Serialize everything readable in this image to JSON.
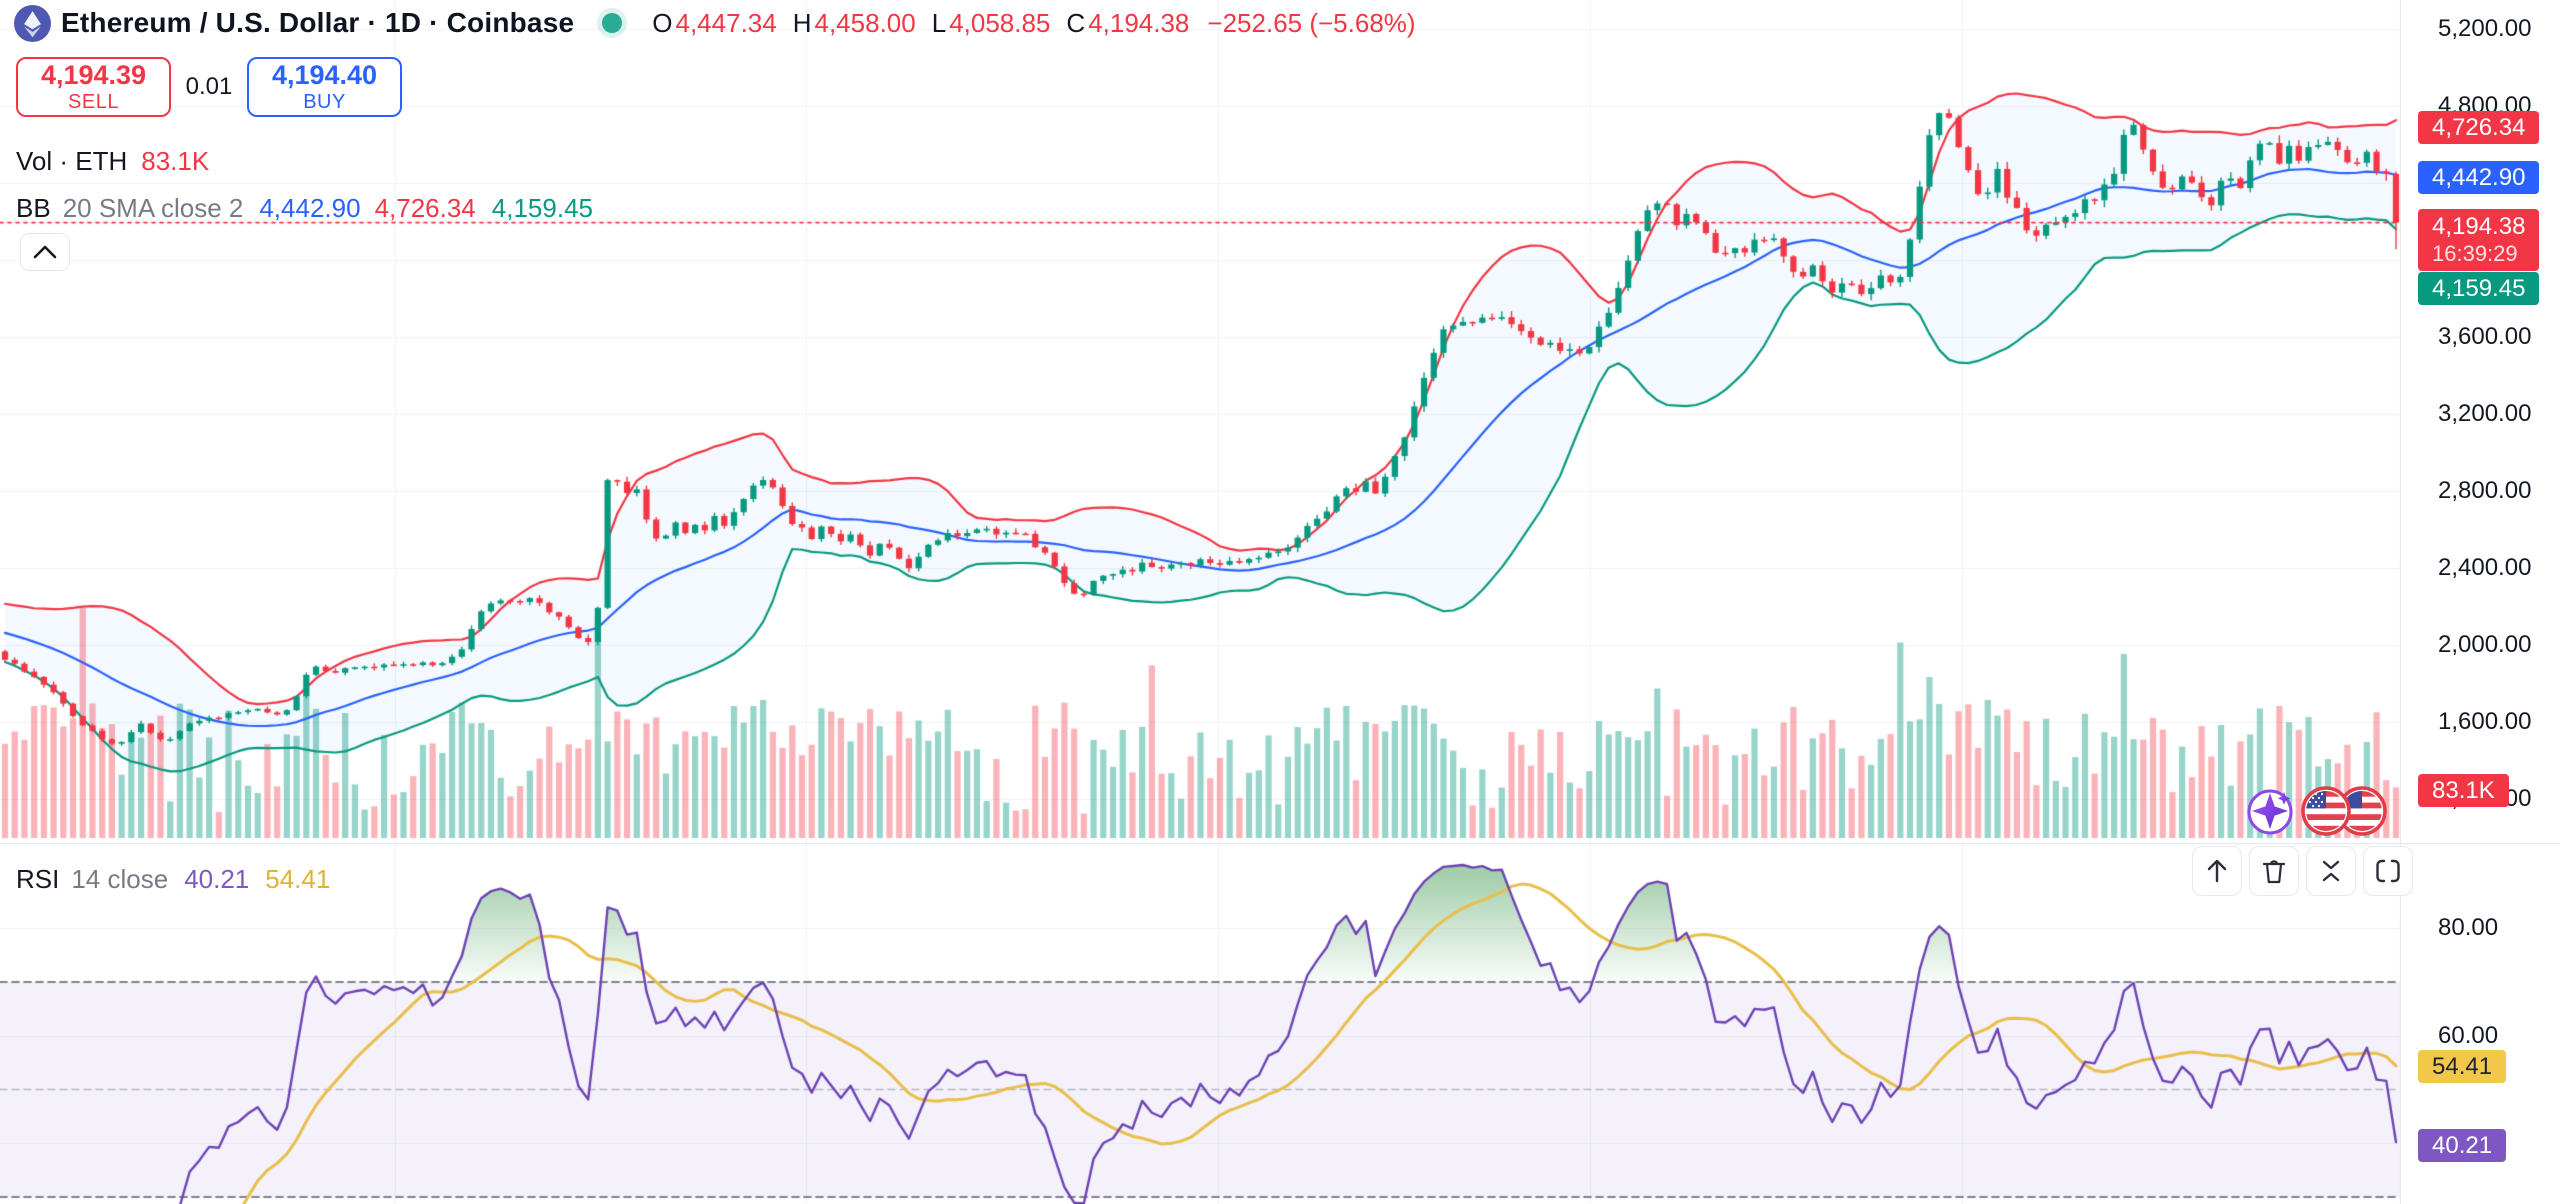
{
  "header": {
    "title": "Ethereum / U.S. Dollar · 1D · Coinbase",
    "ohlc": {
      "o_label": "O",
      "o": "4,447.34",
      "h_label": "H",
      "h": "4,458.00",
      "l_label": "L",
      "l": "4,058.85",
      "c_label": "C",
      "c": "4,194.38",
      "change": "−252.65 (−5.68%)"
    },
    "sell": {
      "price": "4,194.39",
      "label": "SELL"
    },
    "buy": {
      "price": "4,194.40",
      "label": "BUY"
    },
    "spread": "0.01",
    "volume_row": {
      "label": "Vol · ETH",
      "value": "83.1K"
    },
    "bb_row": {
      "label": "BB",
      "params": "20 SMA close 2",
      "basis": "4,442.90",
      "upper": "4,726.34",
      "lower": "4,159.45"
    }
  },
  "rsi_row": {
    "label": "RSI",
    "params": "14 close",
    "value": "40.21",
    "ma": "54.41"
  },
  "badges": {
    "countdown": "16:39:29"
  },
  "icons": [
    "eth-logo-icon",
    "market-status-dot",
    "chevron-up-icon",
    "arrow-up-icon",
    "trash-icon",
    "collapse-pane-icon",
    "maximize-pane-icon",
    "us-flag-event-icon",
    "ai-sparkle-icon"
  ],
  "colors": {
    "up": "#089981",
    "down": "#f23645",
    "bb_basis": "#2962ff",
    "rsi_line": "#6d43b5",
    "rsi_ma": "#e9bf4a",
    "accent_buy": "#2962ff",
    "accent_sell": "#f23645"
  },
  "chart_data": {
    "type": "candlestick",
    "title": "Ethereum / U.S. Dollar, 1D, Coinbase",
    "n_candles": 247,
    "last_candle": {
      "open": 4447.34,
      "high": 4458.0,
      "low": 4058.85,
      "close": 4194.38
    },
    "levels": {
      "close_line": 4194.38,
      "rsi_overbought": 70,
      "rsi_mid": 50,
      "rsi_oversold": 30
    },
    "price_ticks": [
      {
        "label": "5,200.00",
        "value": 5200
      },
      {
        "label": "4,800.00",
        "value": 4800
      },
      {
        "label": "3,600.00",
        "value": 3600
      },
      {
        "label": "3,200.00",
        "value": 3200
      },
      {
        "label": "2,800.00",
        "value": 2800
      },
      {
        "label": "2,400.00",
        "value": 2400
      },
      {
        "label": "2,000.00",
        "value": 2000
      },
      {
        "label": "1,600.00",
        "value": 1600
      },
      {
        "label": "1,200.00",
        "value": 1200
      }
    ],
    "grid_price_values": [
      5200,
      4800,
      4400,
      4000,
      3600,
      3200,
      2800,
      2400,
      2000,
      1600,
      1200
    ],
    "rsi_ticks": [
      {
        "label": "80.00",
        "value": 80
      },
      {
        "label": "60.00",
        "value": 60
      }
    ],
    "rsi_grid_values": [
      80,
      60,
      40
    ],
    "indicators": {
      "bb": {
        "length": 20,
        "mult": 2,
        "basis_val": 4442.9,
        "upper_val": 4726.34,
        "lower_val": 4159.45
      },
      "rsi": {
        "length": 14,
        "value_val": 40.21,
        "ma_val": 54.41
      },
      "volume": {
        "value": "83.1K"
      }
    },
    "price_anchors": [
      [
        -300,
        2350
      ],
      [
        0,
        1950
      ],
      [
        15,
        1900
      ],
      [
        35,
        1830
      ],
      [
        50,
        1770
      ],
      [
        62,
        1700
      ],
      [
        75,
        1620
      ],
      [
        90,
        1560
      ],
      [
        105,
        1510
      ],
      [
        116,
        1475
      ],
      [
        126,
        1530
      ],
      [
        140,
        1585
      ],
      [
        154,
        1540
      ],
      [
        167,
        1498
      ],
      [
        180,
        1555
      ],
      [
        195,
        1600
      ],
      [
        215,
        1625
      ],
      [
        235,
        1645
      ],
      [
        255,
        1662
      ],
      [
        272,
        1640
      ],
      [
        290,
        1665
      ],
      [
        300,
        1755
      ],
      [
        308,
        1862
      ],
      [
        320,
        1885
      ],
      [
        338,
        1862
      ],
      [
        356,
        1892
      ],
      [
        374,
        1872
      ],
      [
        392,
        1902
      ],
      [
        410,
        1882
      ],
      [
        428,
        1902
      ],
      [
        446,
        1922
      ],
      [
        460,
        1945
      ],
      [
        470,
        2055
      ],
      [
        479,
        2185
      ],
      [
        492,
        2210
      ],
      [
        506,
        2245
      ],
      [
        520,
        2215
      ],
      [
        534,
        2235
      ],
      [
        548,
        2185
      ],
      [
        562,
        2125
      ],
      [
        576,
        2055
      ],
      [
        588,
        2002
      ],
      [
        597,
        2108
      ],
      [
        604,
        2865
      ],
      [
        612,
        2825
      ],
      [
        620,
        2885
      ],
      [
        628,
        2772
      ],
      [
        636,
        2825
      ],
      [
        645,
        2675
      ],
      [
        653,
        2585
      ],
      [
        661,
        2522
      ],
      [
        669,
        2582
      ],
      [
        677,
        2645
      ],
      [
        686,
        2585
      ],
      [
        696,
        2645
      ],
      [
        706,
        2605
      ],
      [
        716,
        2665
      ],
      [
        726,
        2625
      ],
      [
        736,
        2705
      ],
      [
        746,
        2775
      ],
      [
        756,
        2845
      ],
      [
        765,
        2872
      ],
      [
        773,
        2822
      ],
      [
        781,
        2722
      ],
      [
        791,
        2652
      ],
      [
        801,
        2602
      ],
      [
        811,
        2562
      ],
      [
        821,
        2622
      ],
      [
        831,
        2582
      ],
      [
        841,
        2542
      ],
      [
        851,
        2562
      ],
      [
        861,
        2502
      ],
      [
        871,
        2462
      ],
      [
        881,
        2522
      ],
      [
        891,
        2482
      ],
      [
        901,
        2442
      ],
      [
        911,
        2402
      ],
      [
        921,
        2462
      ],
      [
        931,
        2522
      ],
      [
        941,
        2562
      ],
      [
        951,
        2602
      ],
      [
        961,
        2562
      ],
      [
        971,
        2622
      ],
      [
        981,
        2582
      ],
      [
        991,
        2602
      ],
      [
        1001,
        2562
      ],
      [
        1011,
        2602
      ],
      [
        1021,
        2582
      ],
      [
        1031,
        2542
      ],
      [
        1041,
        2502
      ],
      [
        1051,
        2442
      ],
      [
        1061,
        2352
      ],
      [
        1071,
        2282
      ],
      [
        1081,
        2248
      ],
      [
        1091,
        2322
      ],
      [
        1101,
        2382
      ],
      [
        1111,
        2352
      ],
      [
        1121,
        2402
      ],
      [
        1131,
        2382
      ],
      [
        1141,
        2422
      ],
      [
        1156,
        2402
      ],
      [
        1171,
        2432
      ],
      [
        1186,
        2412
      ],
      [
        1201,
        2442
      ],
      [
        1216,
        2422
      ],
      [
        1231,
        2452
      ],
      [
        1246,
        2432
      ],
      [
        1261,
        2462
      ],
      [
        1276,
        2482
      ],
      [
        1291,
        2522
      ],
      [
        1306,
        2602
      ],
      [
        1321,
        2682
      ],
      [
        1336,
        2752
      ],
      [
        1346,
        2822
      ],
      [
        1356,
        2782
      ],
      [
        1366,
        2852
      ],
      [
        1376,
        2802
      ],
      [
        1386,
        2902
      ],
      [
        1396,
        2982
      ],
      [
        1406,
        3102
      ],
      [
        1416,
        3252
      ],
      [
        1426,
        3422
      ],
      [
        1436,
        3552
      ],
      [
        1446,
        3682
      ],
      [
        1456,
        3622
      ],
      [
        1466,
        3702
      ],
      [
        1476,
        3652
      ],
      [
        1486,
        3722
      ],
      [
        1496,
        3652
      ],
      [
        1506,
        3702
      ],
      [
        1516,
        3602
      ],
      [
        1526,
        3652
      ],
      [
        1536,
        3552
      ],
      [
        1546,
        3602
      ],
      [
        1556,
        3502
      ],
      [
        1566,
        3562
      ],
      [
        1576,
        3482
      ],
      [
        1586,
        3542
      ],
      [
        1596,
        3602
      ],
      [
        1606,
        3702
      ],
      [
        1616,
        3822
      ],
      [
        1626,
        3952
      ],
      [
        1636,
        4102
      ],
      [
        1646,
        4222
      ],
      [
        1653,
        4302
      ],
      [
        1661,
        4252
      ],
      [
        1669,
        4322
      ],
      [
        1677,
        4202
      ],
      [
        1685,
        4282
      ],
      [
        1693,
        4152
      ],
      [
        1701,
        4222
      ],
      [
        1711,
        4102
      ],
      [
        1721,
        4002
      ],
      [
        1731,
        4082
      ],
      [
        1741,
        4022
      ],
      [
        1751,
        4102
      ],
      [
        1761,
        4062
      ],
      [
        1771,
        4122
      ],
      [
        1781,
        4062
      ],
      [
        1791,
        3982
      ],
      [
        1801,
        3902
      ],
      [
        1811,
        3962
      ],
      [
        1821,
        3902
      ],
      [
        1831,
        3842
      ],
      [
        1841,
        3902
      ],
      [
        1851,
        3862
      ],
      [
        1861,
        3802
      ],
      [
        1871,
        3862
      ],
      [
        1881,
        3922
      ],
      [
        1891,
        3882
      ],
      [
        1901,
        3942
      ],
      [
        1909,
        4082
      ],
      [
        1917,
        4302
      ],
      [
        1925,
        4562
      ],
      [
        1933,
        4702
      ],
      [
        1941,
        4782
      ],
      [
        1949,
        4722
      ],
      [
        1957,
        4602
      ],
      [
        1965,
        4502
      ],
      [
        1973,
        4402
      ],
      [
        1981,
        4302
      ],
      [
        1989,
        4382
      ],
      [
        1997,
        4452
      ],
      [
        2005,
        4362
      ],
      [
        2013,
        4282
      ],
      [
        2021,
        4222
      ],
      [
        2029,
        4162
      ],
      [
        2037,
        4102
      ],
      [
        2045,
        4162
      ],
      [
        2053,
        4222
      ],
      [
        2061,
        4162
      ],
      [
        2069,
        4222
      ],
      [
        2077,
        4282
      ],
      [
        2085,
        4342
      ],
      [
        2093,
        4302
      ],
      [
        2101,
        4362
      ],
      [
        2109,
        4422
      ],
      [
        2117,
        4502
      ],
      [
        2125,
        4682
      ],
      [
        2131,
        4742
      ],
      [
        2137,
        4702
      ],
      [
        2145,
        4562
      ],
      [
        2153,
        4482
      ],
      [
        2161,
        4402
      ],
      [
        2169,
        4342
      ],
      [
        2177,
        4402
      ],
      [
        2185,
        4442
      ],
      [
        2193,
        4382
      ],
      [
        2201,
        4322
      ],
      [
        2209,
        4282
      ],
      [
        2217,
        4382
      ],
      [
        2225,
        4442
      ],
      [
        2233,
        4402
      ],
      [
        2241,
        4362
      ],
      [
        2249,
        4502
      ],
      [
        2257,
        4562
      ],
      [
        2265,
        4602
      ],
      [
        2273,
        4562
      ],
      [
        2281,
        4522
      ],
      [
        2289,
        4562
      ],
      [
        2297,
        4502
      ],
      [
        2305,
        4542
      ],
      [
        2313,
        4582
      ],
      [
        2321,
        4622
      ],
      [
        2329,
        4582
      ],
      [
        2337,
        4562
      ],
      [
        2345,
        4522
      ],
      [
        2353,
        4562
      ],
      [
        2361,
        4502
      ],
      [
        2369,
        4542
      ],
      [
        2377,
        4482
      ],
      [
        2386,
        4447.34
      ],
      [
        2396,
        4194.38
      ]
    ],
    "volume_spikes": {
      "8": 1.0,
      "31": 0.62,
      "49": 0.5,
      "61": 0.95,
      "63": 0.55,
      "78": 0.6,
      "85": 0.55,
      "88": 0.5,
      "118": 0.75,
      "170": 0.65,
      "195": 0.85,
      "198": 0.7,
      "204": 0.6,
      "218": 0.8,
      "231": 0.45
    },
    "last_volume_frac": 0.22
  }
}
